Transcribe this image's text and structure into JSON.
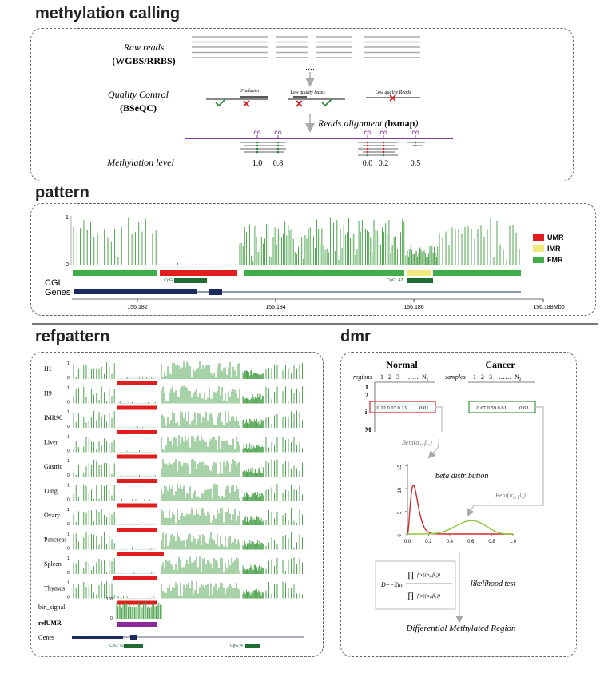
{
  "sections": {
    "methylation_calling": "methylation calling",
    "pattern": "pattern",
    "refpattern": "refpattern",
    "dmr": "dmr"
  },
  "calling": {
    "raw_reads": "Raw reads",
    "raw_reads_sub": "(WGBS/RRBS)",
    "qc": "Quality Control",
    "qc_sub": "(BSeQC)",
    "adapter": "3' adapter",
    "low_bases": "Low quality bases",
    "low_reads": "Low quality Reads",
    "alignment_prefix": "Reads alignment (",
    "alignment_tool": "bsmap",
    "alignment_suffix": ")",
    "methylation_level": "Methylation level",
    "cg": "CG",
    "levels": [
      "1.0",
      "0.8",
      "0.0",
      "0.2",
      "0.5"
    ],
    "ellipsis": "……"
  },
  "pattern": {
    "y_top": "1",
    "y_bottom": "0",
    "legend": [
      {
        "label": "UMR",
        "color": "#e01e1e"
      },
      {
        "label": "IMR",
        "color": "#f0ea7a"
      },
      {
        "label": "FMR",
        "color": "#3fae49"
      }
    ],
    "cgi_label": "CGI",
    "genes_label": "Genes",
    "cpg1": "CpG: 52",
    "cpg2": "CpG: 47",
    "ticks": [
      "156.182",
      "156.184",
      "156.186",
      "156.188"
    ],
    "unit": "Mbp"
  },
  "refpattern": {
    "tracks": [
      "H1",
      "H9",
      "IMR90",
      "Liver",
      "Gastric",
      "Lung",
      "Ovary",
      "Pancreas",
      "Spleen",
      "Thymus"
    ],
    "y_top": "1",
    "y_bottom": "0",
    "bin_signal": "bin_signal",
    "bin_top": "100",
    "bin_bottom": "0",
    "refumr": "refUMR",
    "genes": "Genes",
    "cpg1": "CpG: 52",
    "cpg2": "CpG: 47"
  },
  "dmr": {
    "normal": "Normal",
    "cancer": "Cancer",
    "regions": "regions",
    "samples": "samples",
    "cols": [
      "1",
      "2",
      "3",
      "……",
      "N"
    ],
    "n1_sub": "1",
    "n2_sub": "2",
    "rows": [
      "1",
      "2",
      "i",
      "M"
    ],
    "normal_values": "0.12 0.07 0.13  ……  0.01",
    "cancer_values": "0.67 0.59 0.81  ……  0.63",
    "beta1": "Beta(α₁, β₁)",
    "beta2": "Beta(α₂, β₂)",
    "beta_distribution": "beta distribution",
    "y_ticks": [
      "15",
      "10",
      "5",
      "0"
    ],
    "x_ticks": [
      "0.0",
      "0.2",
      "0.4",
      "0.6",
      "0.8",
      "1.0"
    ],
    "formula": "D = −2ln ∏ f(xᵢ|(α₀,β₀)) / ∏ f(xᵢ|(α₁,β₁))",
    "likelihood": "likelihood test",
    "result": "Differential Methylated Region"
  },
  "colors": {
    "green_bar": "#3c9a3c",
    "umr_red": "#e01e1e",
    "fmr_green": "#3fae49",
    "gene_navy": "#1b2a5e",
    "cpg_dark": "#1e6b34",
    "purple": "#8b2a9b",
    "beta1_curve": "#d62a2a",
    "beta2_curve": "#8cc63f"
  }
}
